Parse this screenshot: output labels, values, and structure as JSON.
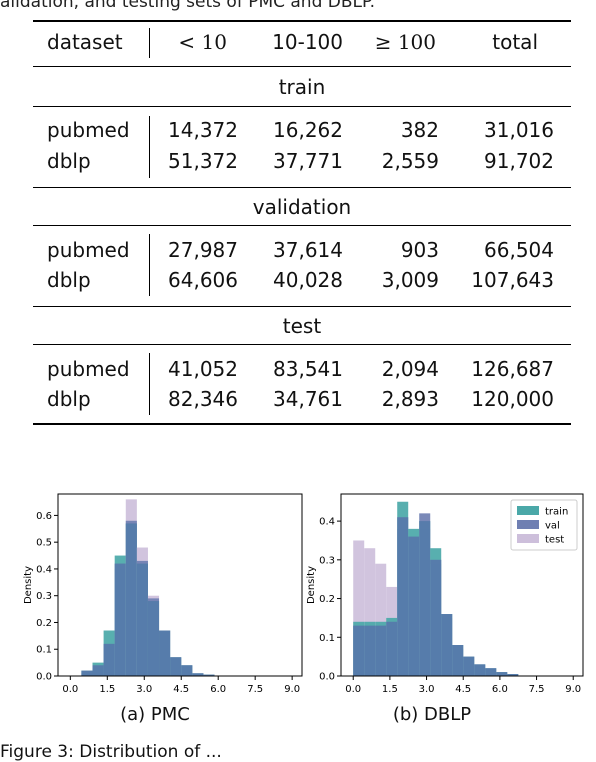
{
  "top_text": "alidation, and testing sets of PMC and DBLP.",
  "table": {
    "headers": [
      "dataset",
      "< 10",
      "10-100",
      "≥ 100",
      "total"
    ],
    "sections": [
      {
        "label": "train",
        "rows": [
          {
            "name": "pubmed",
            "values": [
              "14,372",
              "16,262",
              "382",
              "31,016"
            ]
          },
          {
            "name": "dblp",
            "values": [
              "51,372",
              "37,771",
              "2,559",
              "91,702"
            ]
          }
        ]
      },
      {
        "label": "validation",
        "rows": [
          {
            "name": "pubmed",
            "values": [
              "27,987",
              "37,614",
              "903",
              "66,504"
            ]
          },
          {
            "name": "dblp",
            "values": [
              "64,606",
              "40,028",
              "3,009",
              "107,643"
            ]
          }
        ]
      },
      {
        "label": "test",
        "rows": [
          {
            "name": "pubmed",
            "values": [
              "41,052",
              "83,541",
              "2,094",
              "126,687"
            ]
          },
          {
            "name": "dblp",
            "values": [
              "82,346",
              "34,761",
              "2,893",
              "120,000"
            ]
          }
        ]
      }
    ]
  },
  "captions": {
    "a": "(a) PMC",
    "b": "(b) DBLP"
  },
  "bottom_text": "Figure 3: Distribution of ... ",
  "colors": {
    "train": "#4aa8a8",
    "val": "#6f7fb2",
    "test": "#cdbfdb",
    "overlap": "#2e6f9e"
  },
  "chart_data": [
    {
      "type": "bar",
      "title": "",
      "xlabel": "",
      "ylabel": "Density",
      "xticks": [
        "0.0",
        "1.5",
        "3.0",
        "4.5",
        "6.0",
        "7.5",
        "9.0"
      ],
      "yticks": [
        "0.0",
        "0.1",
        "0.2",
        "0.3",
        "0.4",
        "0.5",
        "0.6"
      ],
      "ylim": [
        0,
        0.68
      ],
      "xlim": [
        -0.5,
        9.4
      ],
      "bin_start": 0,
      "bin_width": 0.45,
      "series": [
        {
          "name": "train",
          "values": [
            0,
            0.02,
            0.05,
            0.17,
            0.45,
            0.57,
            0.42,
            0.28,
            0.17,
            0.07,
            0.04,
            0.01,
            0.005,
            0,
            0,
            0,
            0,
            0,
            0,
            0
          ]
        },
        {
          "name": "val",
          "values": [
            0,
            0.02,
            0.04,
            0.12,
            0.42,
            0.58,
            0.43,
            0.29,
            0.17,
            0.07,
            0.04,
            0.01,
            0.005,
            0,
            0,
            0,
            0,
            0,
            0,
            0
          ]
        },
        {
          "name": "test",
          "values": [
            0,
            0.01,
            0.03,
            0.12,
            0.4,
            0.66,
            0.48,
            0.3,
            0.17,
            0.07,
            0.04,
            0.01,
            0.005,
            0,
            0,
            0,
            0,
            0,
            0,
            0
          ]
        }
      ]
    },
    {
      "type": "bar",
      "title": "",
      "xlabel": "",
      "ylabel": "Density",
      "xticks": [
        "0.0",
        "1.5",
        "3.0",
        "4.5",
        "6.0",
        "7.5",
        "9.0"
      ],
      "yticks": [
        "0.0",
        "0.1",
        "0.2",
        "0.3",
        "0.4"
      ],
      "ylim": [
        0,
        0.47
      ],
      "xlim": [
        -0.5,
        9.4
      ],
      "bin_start": 0,
      "bin_width": 0.45,
      "legend": {
        "position": "top-right",
        "entries": [
          "train",
          "val",
          "test"
        ]
      },
      "series": [
        {
          "name": "train",
          "values": [
            0.14,
            0.14,
            0.14,
            0.15,
            0.45,
            0.38,
            0.4,
            0.33,
            0.16,
            0.08,
            0.05,
            0.03,
            0.02,
            0.01,
            0.005,
            0,
            0,
            0,
            0,
            0
          ]
        },
        {
          "name": "val",
          "values": [
            0.13,
            0.13,
            0.13,
            0.14,
            0.41,
            0.36,
            0.42,
            0.3,
            0.16,
            0.08,
            0.05,
            0.03,
            0.02,
            0.01,
            0.005,
            0,
            0,
            0,
            0,
            0
          ]
        },
        {
          "name": "test",
          "values": [
            0.35,
            0.33,
            0.29,
            0.23,
            0.38,
            0.35,
            0.38,
            0.29,
            0.15,
            0.07,
            0.05,
            0.03,
            0.02,
            0.01,
            0.005,
            0,
            0,
            0,
            0,
            0
          ]
        }
      ]
    }
  ]
}
